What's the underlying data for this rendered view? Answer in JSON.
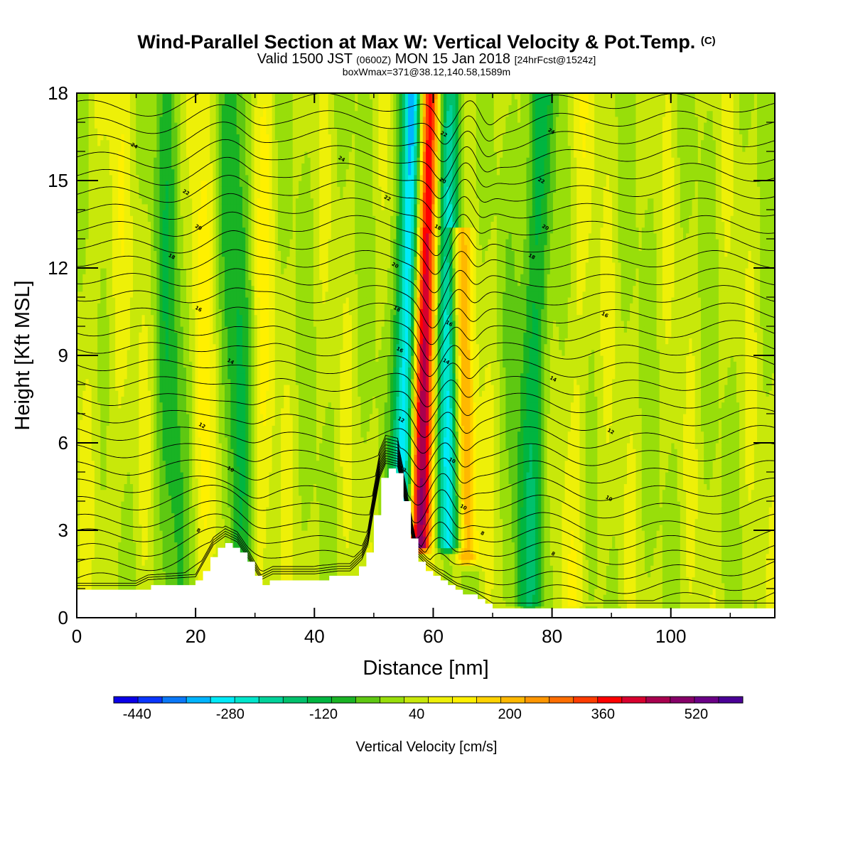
{
  "header": {
    "title": "Wind-Parallel Section at Max W: Vertical Velocity & Pot.Temp.",
    "copyright": "(C)",
    "valid_prefix": "Valid 1500 JST",
    "valid_zulu": "(0600Z)",
    "valid_date": "MON 15 Jan 2018",
    "forecast_info": "[24hrFcst@1524z]",
    "box_info": "boxWmax=371@38.12,140.58,1589m"
  },
  "chart_data": {
    "type": "heatmap",
    "title": "Wind-Parallel Section at Max W: Vertical Velocity & Pot.Temp.",
    "xlabel": "Distance [nm]",
    "ylabel": "Height [Kft MSL]",
    "xlim": [
      0,
      117.5
    ],
    "ylim": [
      0,
      18
    ],
    "x_ticks": [
      0,
      20,
      40,
      60,
      80,
      100
    ],
    "y_ticks": [
      0,
      3,
      6,
      9,
      12,
      15,
      18
    ],
    "colorbar": {
      "label": "Vertical Velocity [cm/s]",
      "min": -480,
      "max": 600,
      "step": 40,
      "tick_labels": [
        "-440",
        "-280",
        "-120",
        "40",
        "200",
        "360",
        "520"
      ],
      "colors": [
        "#0a00e8",
        "#0a36ff",
        "#0a78f8",
        "#00b4ff",
        "#00eaf8",
        "#00e6cc",
        "#00d29a",
        "#00c16c",
        "#00b540",
        "#19b324",
        "#5ec812",
        "#98de0a",
        "#c8e80a",
        "#eef008",
        "#fff000",
        "#ffd200",
        "#ffb800",
        "#ff9600",
        "#ff6e00",
        "#ff3c00",
        "#ff0000",
        "#d8002e",
        "#a8004e",
        "#860068",
        "#6a0086",
        "#4a0096"
      ]
    },
    "terrain_kft": [
      [
        0,
        0.9
      ],
      [
        10,
        0.9
      ],
      [
        12,
        1.1
      ],
      [
        20,
        1.2
      ],
      [
        23,
        2.3
      ],
      [
        25,
        2.6
      ],
      [
        27,
        2.4
      ],
      [
        29,
        1.8
      ],
      [
        31,
        1.1
      ],
      [
        33,
        1.3
      ],
      [
        40,
        1.3
      ],
      [
        44,
        1.4
      ],
      [
        46,
        1.4
      ],
      [
        48,
        1.8
      ],
      [
        49,
        2.3
      ],
      [
        50,
        3.5
      ],
      [
        51,
        4.6
      ],
      [
        52,
        5.1
      ],
      [
        54,
        5.0
      ],
      [
        56,
        3.0
      ],
      [
        57,
        2.0
      ],
      [
        59,
        1.6
      ],
      [
        61,
        1.3
      ],
      [
        64,
        0.9
      ],
      [
        67,
        0.7
      ],
      [
        70,
        0.3
      ],
      [
        80,
        0.3
      ],
      [
        117.5,
        0.3
      ]
    ],
    "velocity_features": [
      {
        "x_base": 55,
        "x_top": 56.8,
        "half_width": 1.9,
        "value": -440,
        "z_from": 3,
        "z_to": 18
      },
      {
        "x_base": 57.4,
        "x_top": 59.3,
        "half_width": 2.1,
        "value": 480,
        "z_from": 2.5,
        "z_to": 18
      },
      {
        "x_base": 62.6,
        "x_top": 62.2,
        "half_width": 2.2,
        "value": -280,
        "z_from": 2.5,
        "z_to": 18
      },
      {
        "x_base": 65.8,
        "x_top": 64.2,
        "half_width": 1.8,
        "value": 220,
        "z_from": 2,
        "z_to": 13
      },
      {
        "x_base": 27,
        "x_top": 27,
        "half_width": 2.6,
        "value": -120,
        "z_from": 1,
        "z_to": 18
      },
      {
        "x_base": 16,
        "x_top": 15.5,
        "half_width": 2.4,
        "value": -100,
        "z_from": 1,
        "z_to": 18
      },
      {
        "x_base": 76,
        "x_top": 78,
        "half_width": 3,
        "value": -140,
        "z_from": 0.5,
        "z_to": 18
      },
      {
        "x_base": 22,
        "x_top": 21,
        "half_width": 2.2,
        "value": 60,
        "z_from": 1,
        "z_to": 18
      },
      {
        "x_base": 31,
        "x_top": 31,
        "half_width": 2.2,
        "value": 60,
        "z_from": 1,
        "z_to": 18
      },
      {
        "x_base": 84,
        "x_top": 84,
        "half_width": 3,
        "value": 40,
        "z_from": 0.5,
        "z_to": 18
      }
    ],
    "theta_contours": {
      "description": "Potential temperature isentropes (degC)",
      "base_levels_kft": [
        0.3,
        0.75,
        1.2,
        1.7,
        2.2,
        2.7,
        3.2,
        3.8,
        4.4,
        5.0,
        5.6,
        6.2,
        6.8,
        7.4,
        8.0,
        8.6,
        9.2,
        9.8,
        10.4,
        11.0,
        11.6,
        12.2,
        12.8,
        13.4,
        14.0,
        14.6,
        15.2,
        15.8,
        16.4,
        17.0,
        17.6
      ]
    },
    "contour_labels": [
      {
        "text": "24",
        "x": 9.7,
        "z": 16.2
      },
      {
        "text": "24",
        "x": 44.6,
        "z": 15.75
      },
      {
        "text": "24",
        "x": 79.9,
        "z": 16.7
      },
      {
        "text": "22",
        "x": 18.4,
        "z": 14.6
      },
      {
        "text": "22",
        "x": 61.8,
        "z": 16.6
      },
      {
        "text": "22",
        "x": 52.3,
        "z": 14.4
      },
      {
        "text": "22",
        "x": 78.2,
        "z": 15.0
      },
      {
        "text": "20",
        "x": 20.5,
        "z": 13.4
      },
      {
        "text": "20",
        "x": 61.6,
        "z": 15.0
      },
      {
        "text": "20",
        "x": 78.9,
        "z": 13.4
      },
      {
        "text": "20",
        "x": 53.6,
        "z": 12.1
      },
      {
        "text": "18",
        "x": 16,
        "z": 12.4
      },
      {
        "text": "18",
        "x": 60.8,
        "z": 13.4
      },
      {
        "text": "18",
        "x": 76.6,
        "z": 12.4
      },
      {
        "text": "18",
        "x": 53.9,
        "z": 10.6
      },
      {
        "text": "16",
        "x": 20.5,
        "z": 10.6
      },
      {
        "text": "16",
        "x": 62.7,
        "z": 10.1
      },
      {
        "text": "16",
        "x": 88.9,
        "z": 10.4
      },
      {
        "text": "16",
        "x": 54.4,
        "z": 9.2
      },
      {
        "text": "14",
        "x": 25.9,
        "z": 8.8
      },
      {
        "text": "14",
        "x": 62.2,
        "z": 8.8
      },
      {
        "text": "14",
        "x": 80.2,
        "z": 8.2
      },
      {
        "text": "12",
        "x": 21.1,
        "z": 6.6
      },
      {
        "text": "12",
        "x": 54.6,
        "z": 6.8
      },
      {
        "text": "12",
        "x": 89.9,
        "z": 6.4
      },
      {
        "text": "10",
        "x": 25.9,
        "z": 5.1
      },
      {
        "text": "10",
        "x": 63.2,
        "z": 5.4
      },
      {
        "text": "10",
        "x": 89.6,
        "z": 4.1
      },
      {
        "text": "12",
        "x": 54.9,
        "z": 5.1
      },
      {
        "text": "10",
        "x": 65.1,
        "z": 3.8
      },
      {
        "text": "8",
        "x": 20.5,
        "z": 3.0
      },
      {
        "text": "8",
        "x": 68.3,
        "z": 2.9
      },
      {
        "text": "8",
        "x": 80.2,
        "z": 2.2
      }
    ]
  }
}
